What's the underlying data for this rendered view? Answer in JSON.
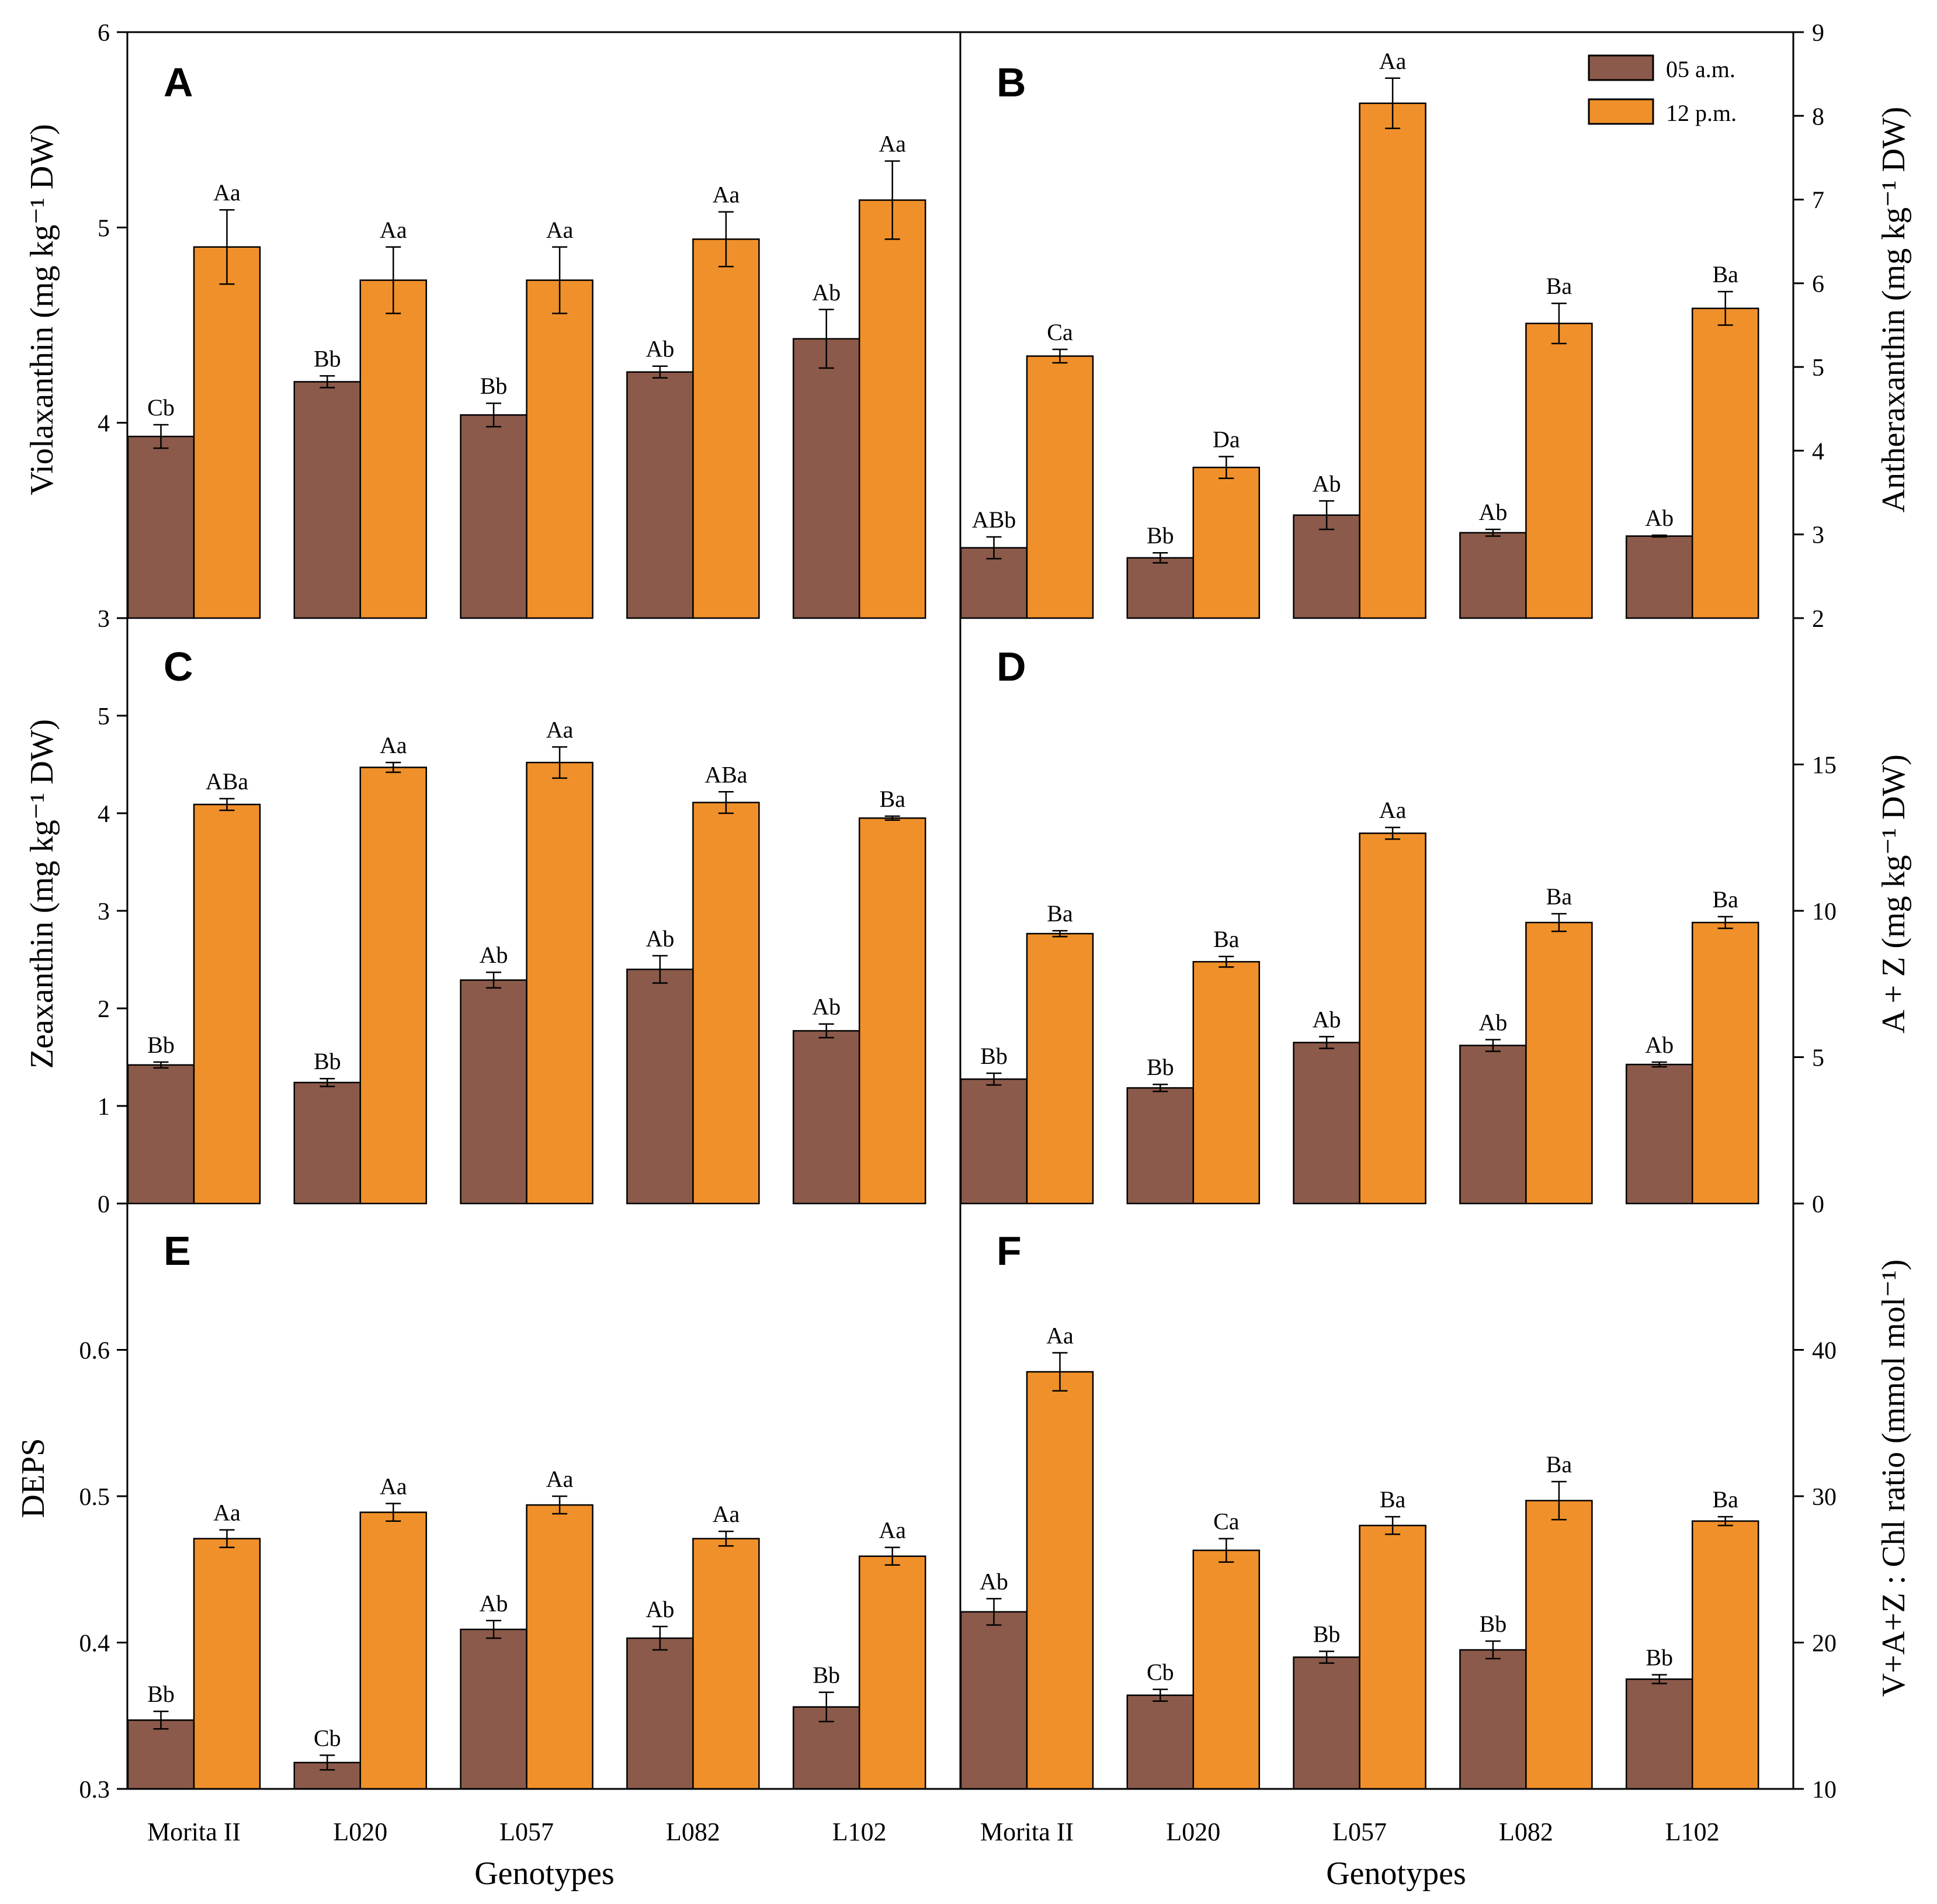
{
  "colors": {
    "am": "#8B5A4A",
    "pm": "#F0902A",
    "frame": "#000000"
  },
  "legend": {
    "am_label": "05 a.m.",
    "pm_label": "12 p.m."
  },
  "x_axis_title": "Genotypes",
  "chart_data": [
    {
      "panel": "A",
      "type": "bar",
      "categories": [
        "Morita II",
        "L020",
        "L057",
        "L082",
        "L102"
      ],
      "ylabel": "Violaxanthin (mg kg⁻¹ DW)",
      "ylim": [
        3,
        6
      ],
      "yticks": [
        "3",
        "4",
        "5",
        "6"
      ],
      "series": [
        {
          "name": "05 a.m.",
          "values": [
            3.93,
            4.21,
            4.04,
            4.26,
            4.43
          ],
          "errors": [
            0.06,
            0.03,
            0.06,
            0.03,
            0.15
          ],
          "labels": [
            "Cb",
            "Bb",
            "Bb",
            "Ab",
            "Ab"
          ]
        },
        {
          "name": "12 p.m.",
          "values": [
            4.9,
            4.73,
            4.73,
            4.94,
            5.14
          ],
          "errors": [
            0.19,
            0.17,
            0.17,
            0.14,
            0.2
          ],
          "labels": [
            "Aa",
            "Aa",
            "Aa",
            "Aa",
            "Aa"
          ]
        }
      ]
    },
    {
      "panel": "B",
      "type": "bar",
      "categories": [
        "Morita II",
        "L020",
        "L057",
        "L082",
        "L102"
      ],
      "ylabel": "Antheraxanthin (mg kg⁻¹ DW)",
      "ylim": [
        2,
        9
      ],
      "yticks": [
        "2",
        "3",
        "4",
        "5",
        "6",
        "7",
        "8",
        "9"
      ],
      "series": [
        {
          "name": "05 a.m.",
          "values": [
            2.84,
            2.72,
            3.23,
            3.02,
            2.98
          ],
          "errors": [
            0.13,
            0.06,
            0.17,
            0.04,
            0.01
          ],
          "labels": [
            "ABb",
            "Bb",
            "Ab",
            "Ab",
            "Ab"
          ]
        },
        {
          "name": "12 p.m.",
          "values": [
            5.13,
            3.8,
            8.15,
            5.52,
            5.7
          ],
          "errors": [
            0.08,
            0.13,
            0.3,
            0.24,
            0.2
          ],
          "labels": [
            "Ca",
            "Da",
            "Aa",
            "Ba",
            "Ba"
          ]
        }
      ]
    },
    {
      "panel": "C",
      "type": "bar",
      "categories": [
        "Morita II",
        "L020",
        "L057",
        "L082",
        "L102"
      ],
      "ylabel": "Zeaxanthin (mg kg⁻¹ DW)",
      "ylim": [
        0,
        6
      ],
      "yticks": [
        "0",
        "1",
        "2",
        "3",
        "4",
        "5"
      ],
      "series": [
        {
          "name": "05 a.m.",
          "values": [
            1.42,
            1.24,
            2.29,
            2.4,
            1.77
          ],
          "errors": [
            0.03,
            0.04,
            0.08,
            0.14,
            0.07
          ],
          "labels": [
            "Bb",
            "Bb",
            "Ab",
            "Ab",
            "Ab"
          ]
        },
        {
          "name": "12 p.m.",
          "values": [
            4.09,
            4.47,
            4.52,
            4.11,
            3.95
          ],
          "errors": [
            0.06,
            0.05,
            0.16,
            0.11,
            0.02
          ],
          "labels": [
            "ABa",
            "Aa",
            "Aa",
            "ABa",
            "Ba"
          ]
        }
      ]
    },
    {
      "panel": "D",
      "type": "bar",
      "categories": [
        "Morita II",
        "L020",
        "L057",
        "L082",
        "L102"
      ],
      "ylabel": "A + Z (mg kg⁻¹ DW)",
      "ylim": [
        0,
        20
      ],
      "yticks": [
        "0",
        "5",
        "10",
        "15"
      ],
      "series": [
        {
          "name": "05 a.m.",
          "values": [
            4.25,
            3.95,
            5.5,
            5.4,
            4.75
          ],
          "errors": [
            0.2,
            0.12,
            0.2,
            0.2,
            0.08
          ],
          "labels": [
            "Bb",
            "Bb",
            "Ab",
            "Ab",
            "Ab"
          ]
        },
        {
          "name": "12 p.m.",
          "values": [
            9.22,
            8.26,
            12.65,
            9.6,
            9.6
          ],
          "errors": [
            0.1,
            0.18,
            0.2,
            0.3,
            0.2
          ],
          "labels": [
            "Ba",
            "Ba",
            "Aa",
            "Ba",
            "Ba"
          ]
        }
      ]
    },
    {
      "panel": "E",
      "type": "bar",
      "categories": [
        "Morita II",
        "L020",
        "L057",
        "L082",
        "L102"
      ],
      "ylabel": "DEPS",
      "ylim": [
        0.3,
        0.7
      ],
      "yticks": [
        "0.3",
        "0.4",
        "0.5",
        "0.6"
      ],
      "series": [
        {
          "name": "05 a.m.",
          "values": [
            0.347,
            0.318,
            0.409,
            0.403,
            0.356
          ],
          "errors": [
            0.006,
            0.005,
            0.006,
            0.008,
            0.01
          ],
          "labels": [
            "Bb",
            "Cb",
            "Ab",
            "Ab",
            "Bb"
          ]
        },
        {
          "name": "12 p.m.",
          "values": [
            0.471,
            0.489,
            0.494,
            0.471,
            0.459
          ],
          "errors": [
            0.006,
            0.006,
            0.006,
            0.005,
            0.006
          ],
          "labels": [
            "Aa",
            "Aa",
            "Aa",
            "Aa",
            "Aa"
          ]
        }
      ]
    },
    {
      "panel": "F",
      "type": "bar",
      "categories": [
        "Morita II",
        "L020",
        "L057",
        "L082",
        "L102"
      ],
      "ylabel": "V+A+Z : Chl ratio (mmol mol⁻¹)",
      "ylim": [
        10,
        50
      ],
      "yticks": [
        "10",
        "20",
        "30",
        "40"
      ],
      "series": [
        {
          "name": "05 a.m.",
          "values": [
            22.1,
            16.4,
            19.0,
            19.5,
            17.5
          ],
          "errors": [
            0.9,
            0.4,
            0.4,
            0.6,
            0.3
          ],
          "labels": [
            "Ab",
            "Cb",
            "Bb",
            "Bb",
            "Bb"
          ]
        },
        {
          "name": "12 p.m.",
          "values": [
            38.5,
            26.3,
            28.0,
            29.7,
            28.3
          ],
          "errors": [
            1.3,
            0.8,
            0.6,
            1.3,
            0.3
          ],
          "labels": [
            "Aa",
            "Ca",
            "Ba",
            "Ba",
            "Ba"
          ]
        }
      ]
    }
  ]
}
